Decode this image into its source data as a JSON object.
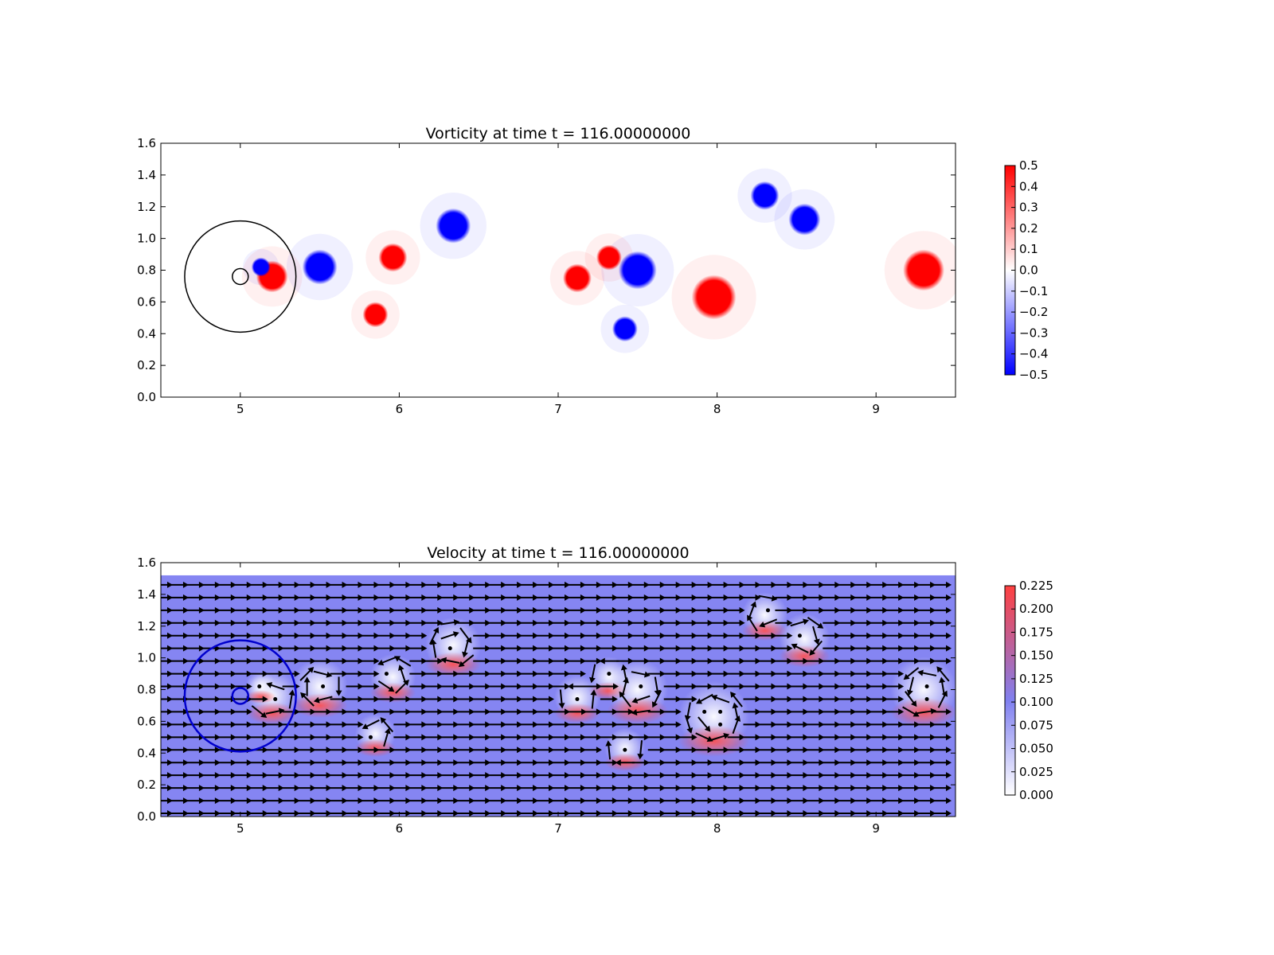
{
  "chart_data": [
    {
      "type": "heatmap",
      "title": "Vorticity at time t =   116.00000000",
      "xlim": [
        4.5,
        9.5
      ],
      "ylim": [
        0.0,
        1.6
      ],
      "xticks": [
        "5",
        "6",
        "7",
        "8",
        "9"
      ],
      "yticks": [
        "0.0",
        "0.2",
        "0.4",
        "0.6",
        "0.8",
        "1.0",
        "1.2",
        "1.4",
        "1.6"
      ],
      "colorbar": {
        "colormap": "bwr",
        "range": [
          -0.5,
          0.5
        ],
        "ticks": [
          "0.5",
          "0.4",
          "0.3",
          "0.2",
          "0.1",
          "0.0",
          "−0.1",
          "−0.2",
          "−0.3",
          "−0.4",
          "−0.5"
        ]
      },
      "circles": [
        {
          "cx": 5.0,
          "cy": 0.76,
          "r": 0.35,
          "color": "#000000"
        },
        {
          "cx": 5.0,
          "cy": 0.76,
          "r": 0.05,
          "color": "#000000"
        }
      ],
      "vortices": [
        {
          "x": 5.5,
          "y": 0.82,
          "r": 0.11,
          "sign": "negative"
        },
        {
          "x": 5.2,
          "y": 0.76,
          "r": 0.1,
          "sign": "positive"
        },
        {
          "x": 5.13,
          "y": 0.82,
          "r": 0.06,
          "sign": "negative"
        },
        {
          "x": 5.96,
          "y": 0.88,
          "r": 0.09,
          "sign": "positive"
        },
        {
          "x": 5.85,
          "y": 0.52,
          "r": 0.08,
          "sign": "positive"
        },
        {
          "x": 6.34,
          "y": 1.08,
          "r": 0.11,
          "sign": "negative"
        },
        {
          "x": 7.12,
          "y": 0.75,
          "r": 0.09,
          "sign": "positive"
        },
        {
          "x": 7.32,
          "y": 0.88,
          "r": 0.08,
          "sign": "positive"
        },
        {
          "x": 7.5,
          "y": 0.8,
          "r": 0.12,
          "sign": "negative"
        },
        {
          "x": 7.42,
          "y": 0.43,
          "r": 0.08,
          "sign": "negative"
        },
        {
          "x": 7.98,
          "y": 0.63,
          "r": 0.14,
          "sign": "positive"
        },
        {
          "x": 8.3,
          "y": 1.27,
          "r": 0.09,
          "sign": "negative"
        },
        {
          "x": 8.55,
          "y": 1.12,
          "r": 0.1,
          "sign": "negative"
        },
        {
          "x": 9.3,
          "y": 0.8,
          "r": 0.13,
          "sign": "positive"
        }
      ]
    },
    {
      "type": "quiver",
      "title": "Velocity at time t =   116.00000000",
      "xlim": [
        4.5,
        9.5
      ],
      "ylim": [
        0.0,
        1.6
      ],
      "xticks": [
        "5",
        "6",
        "7",
        "8",
        "9"
      ],
      "yticks": [
        "0.0",
        "0.2",
        "0.4",
        "0.6",
        "0.8",
        "1.0",
        "1.2",
        "1.4",
        "1.6"
      ],
      "data_ymax": 1.52,
      "colorbar": {
        "colormap": "white-blue-red",
        "range": [
          0.0,
          0.225
        ],
        "ticks": [
          "0.225",
          "0.200",
          "0.175",
          "0.150",
          "0.125",
          "0.100",
          "0.075",
          "0.050",
          "0.025",
          "0.000"
        ]
      },
      "circles": [
        {
          "cx": 5.0,
          "cy": 0.76,
          "r": 0.35,
          "color": "#0000cc"
        },
        {
          "cx": 5.0,
          "cy": 0.76,
          "r": 0.05,
          "color": "#0000cc"
        }
      ]
    }
  ]
}
